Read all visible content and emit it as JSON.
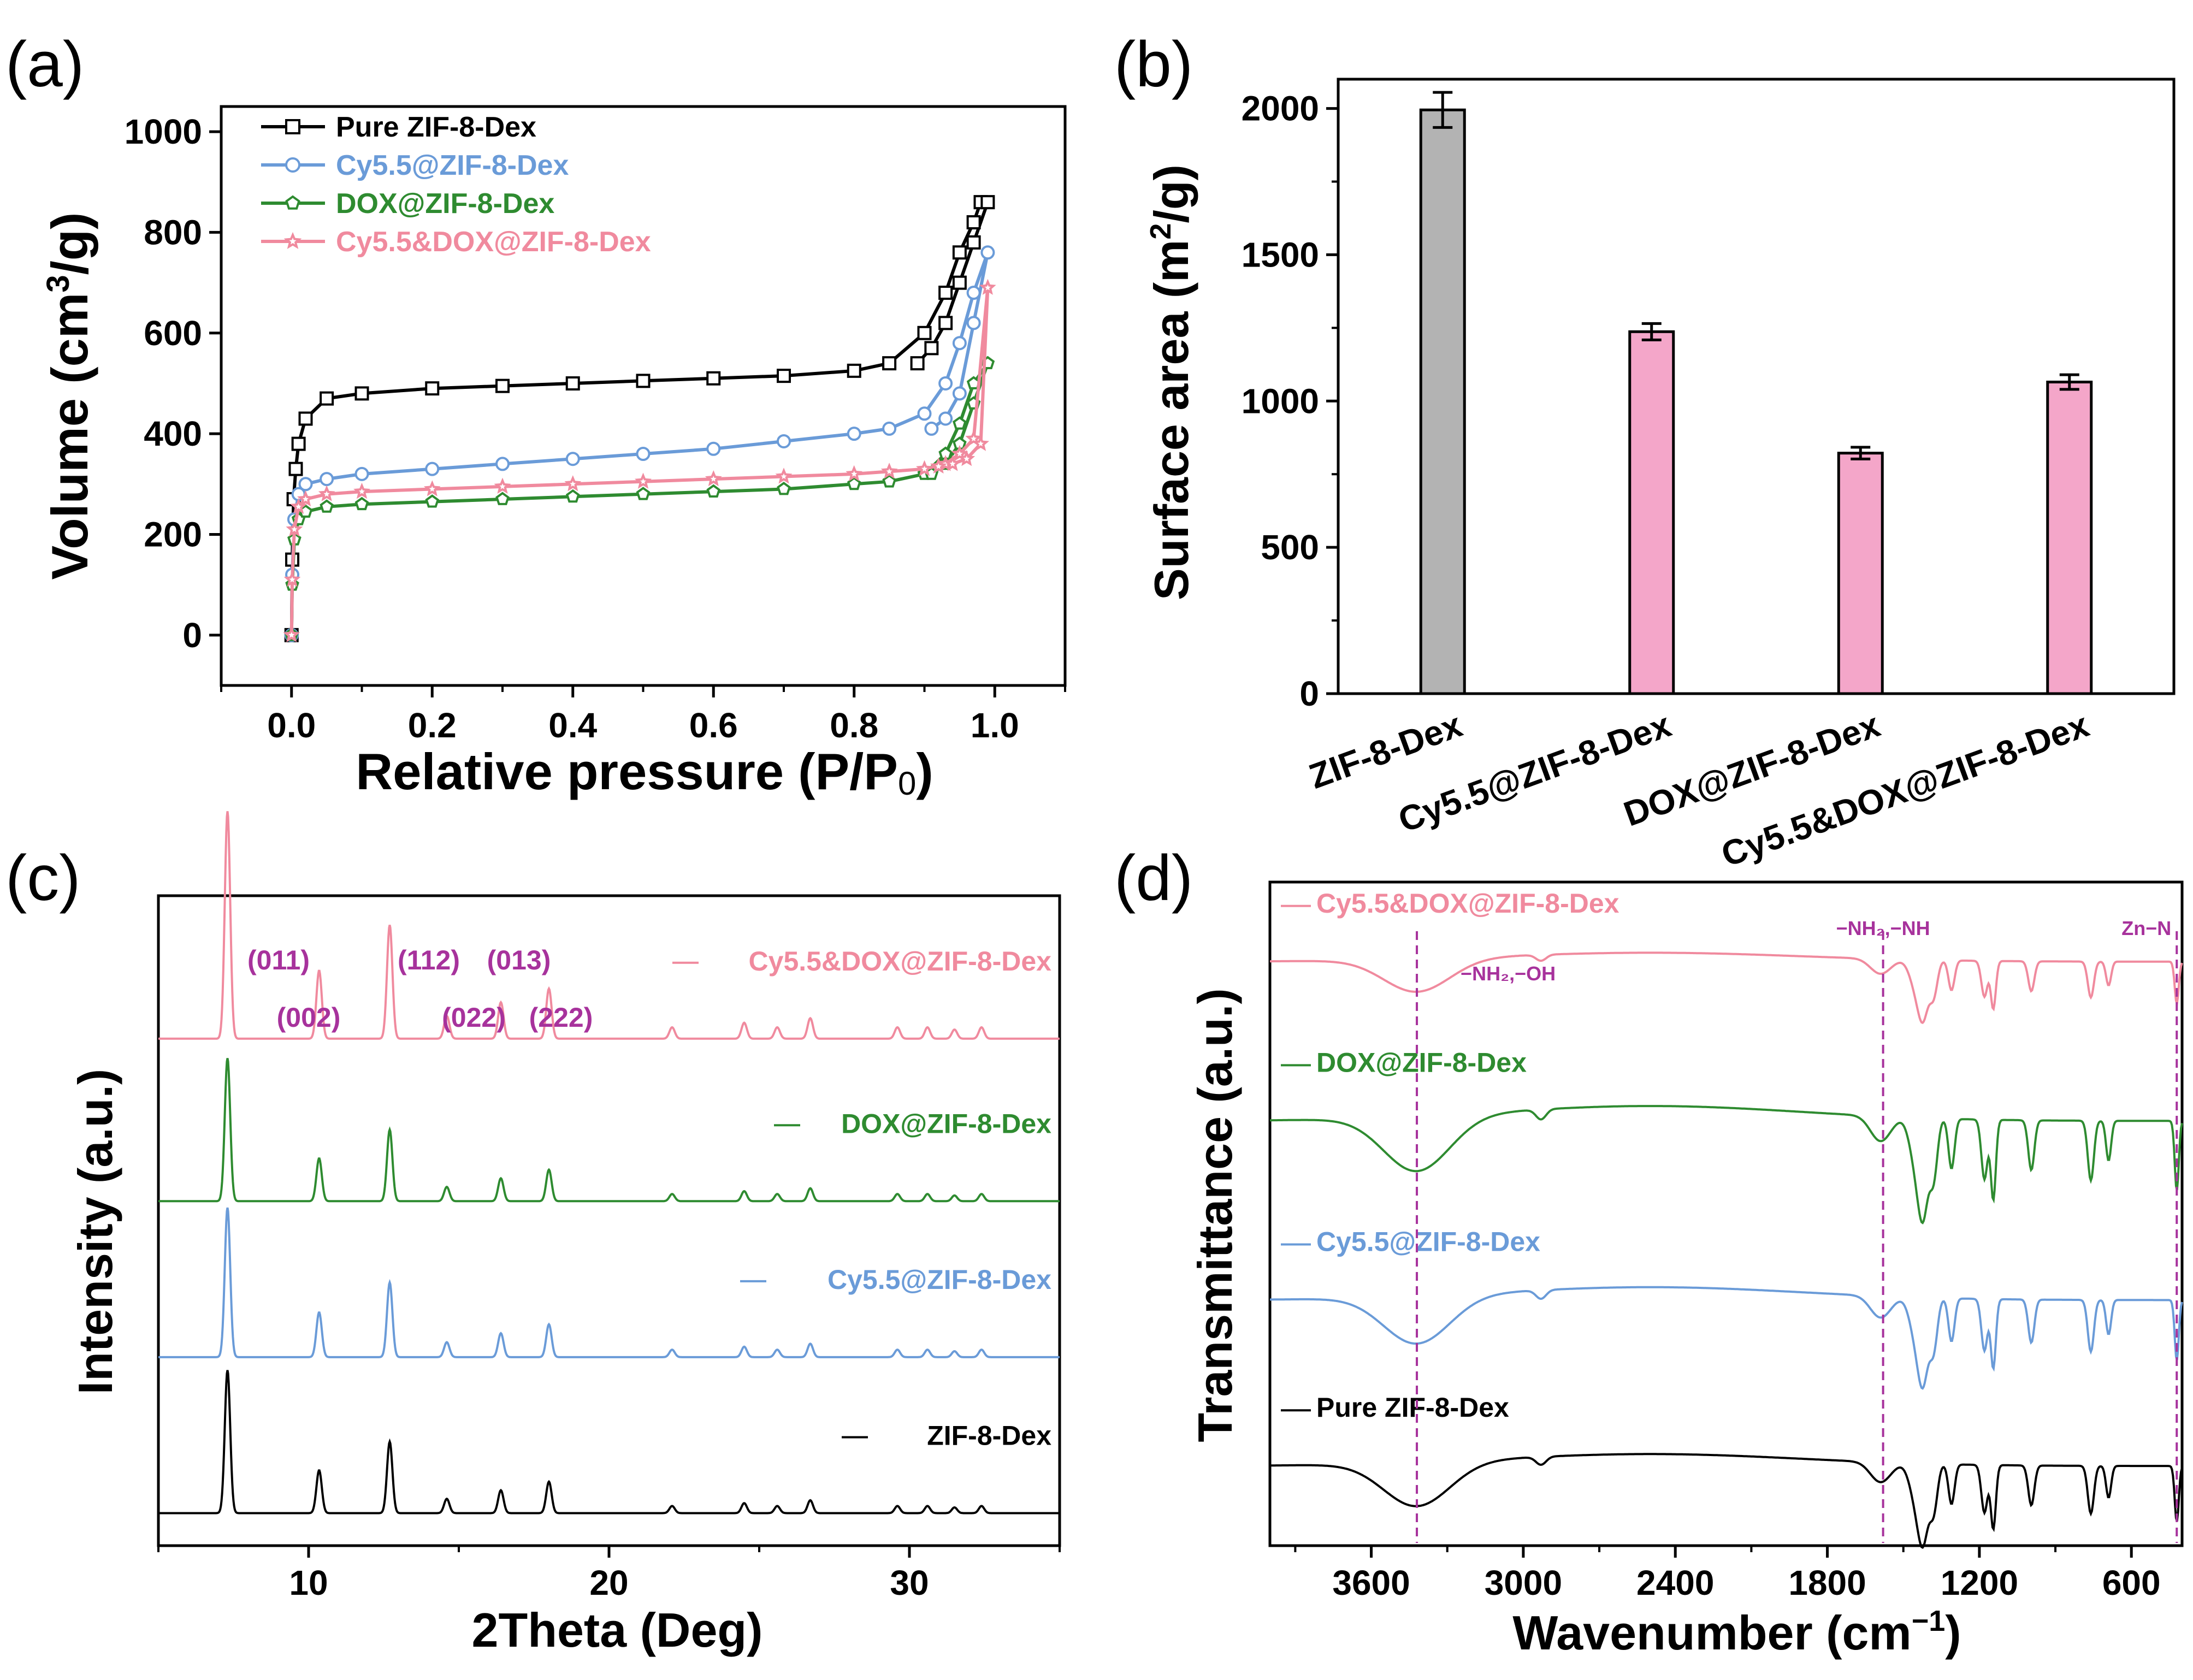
{
  "figure": {
    "panels": [
      "(a)",
      "(b)",
      "(c)",
      "(d)"
    ]
  },
  "chart_data": [
    {
      "panel": "(a)",
      "type": "line",
      "title": "",
      "xlabel_parts": [
        "Relative pressure (P/P",
        "0",
        ")"
      ],
      "ylabel_parts": [
        "Volume (cm",
        "3",
        "/g)"
      ],
      "xlim": [
        -0.1,
        1.1
      ],
      "ylim": [
        -100,
        1050
      ],
      "xticks": [
        0.0,
        0.2,
        0.4,
        0.6,
        0.8,
        1.0
      ],
      "xtick_labels": [
        "0.0",
        "0.2",
        "0.4",
        "0.6",
        "0.8",
        "1.0"
      ],
      "yticks": [
        0,
        200,
        400,
        600,
        800,
        1000
      ],
      "ytick_labels": [
        "0",
        "200",
        "400",
        "600",
        "800",
        "1000"
      ],
      "legend_position": "top-left",
      "series": [
        {
          "name": "Pure ZIF-8-Dex",
          "color": "#000000",
          "marker": "square",
          "x": [
            0.0,
            0.001,
            0.003,
            0.006,
            0.01,
            0.02,
            0.05,
            0.1,
            0.2,
            0.3,
            0.4,
            0.5,
            0.6,
            0.7,
            0.8,
            0.85,
            0.9,
            0.93,
            0.95,
            0.97,
            0.98,
            0.99,
            0.97,
            0.95,
            0.93,
            0.91,
            0.89
          ],
          "y": [
            0,
            150,
            270,
            330,
            380,
            430,
            470,
            480,
            490,
            495,
            500,
            505,
            510,
            515,
            525,
            540,
            600,
            680,
            760,
            820,
            860,
            860,
            780,
            700,
            620,
            570,
            540
          ]
        },
        {
          "name": "Cy5.5@ZIF-8-Dex",
          "color": "#6a9bd8",
          "marker": "circle",
          "x": [
            0.0,
            0.001,
            0.004,
            0.01,
            0.02,
            0.05,
            0.1,
            0.2,
            0.3,
            0.4,
            0.5,
            0.6,
            0.7,
            0.8,
            0.85,
            0.9,
            0.93,
            0.95,
            0.97,
            0.99,
            0.97,
            0.95,
            0.93,
            0.91
          ],
          "y": [
            0,
            120,
            230,
            280,
            300,
            310,
            320,
            330,
            340,
            350,
            360,
            370,
            385,
            400,
            410,
            440,
            500,
            580,
            680,
            760,
            620,
            480,
            430,
            410
          ]
        },
        {
          "name": "DOX@ZIF-8-Dex",
          "color": "#2e8b30",
          "marker": "pentagon",
          "x": [
            0.0,
            0.001,
            0.004,
            0.01,
            0.02,
            0.05,
            0.1,
            0.2,
            0.3,
            0.4,
            0.5,
            0.6,
            0.7,
            0.8,
            0.85,
            0.9,
            0.93,
            0.95,
            0.97,
            0.99,
            0.97,
            0.95,
            0.93,
            0.91
          ],
          "y": [
            0,
            100,
            190,
            230,
            245,
            255,
            260,
            265,
            270,
            275,
            280,
            285,
            290,
            300,
            305,
            320,
            360,
            420,
            500,
            540,
            460,
            380,
            340,
            320
          ]
        },
        {
          "name": "Cy5.5&DOX@ZIF-8-Dex",
          "color": "#f08a9e",
          "marker": "star",
          "x": [
            0.0,
            0.001,
            0.004,
            0.01,
            0.02,
            0.05,
            0.1,
            0.2,
            0.3,
            0.4,
            0.5,
            0.6,
            0.7,
            0.8,
            0.85,
            0.9,
            0.93,
            0.95,
            0.97,
            0.99,
            0.98,
            0.96,
            0.94,
            0.92
          ],
          "y": [
            0,
            110,
            210,
            255,
            270,
            280,
            285,
            290,
            295,
            300,
            305,
            310,
            315,
            320,
            325,
            330,
            340,
            360,
            390,
            690,
            380,
            350,
            340,
            335
          ]
        }
      ]
    },
    {
      "panel": "(b)",
      "type": "bar",
      "title": "",
      "xlabel": "",
      "ylabel_parts": [
        "Surface area (m",
        "2",
        "/g)"
      ],
      "ylim": [
        0,
        2100
      ],
      "yticks": [
        0,
        500,
        1000,
        1500,
        2000
      ],
      "ytick_labels": [
        "0",
        "500",
        "1000",
        "1500",
        "2000"
      ],
      "categories": [
        "ZIF-8-Dex",
        "Cy5.5@ZIF-8-Dex",
        "DOX@ZIF-8-Dex",
        "Cy5.5&DOX@ZIF-8-Dex"
      ],
      "values": [
        1995,
        1237,
        822,
        1065
      ],
      "errors": [
        60,
        28,
        20,
        25
      ],
      "colors": [
        "#b3b3b3",
        "#f4a6c9",
        "#f4a6c9",
        "#f4a6c9"
      ]
    },
    {
      "panel": "(c)",
      "type": "line",
      "title": "",
      "xlabel": "2Theta (Deg)",
      "ylabel": "Intensity (a.u.)",
      "xlim": [
        5,
        35
      ],
      "xticks": [
        10,
        20,
        30
      ],
      "xtick_labels": [
        "10",
        "20",
        "30"
      ],
      "peaks_2theta": [
        7.3,
        10.35,
        12.7,
        14.6,
        16.4,
        18.0,
        22.1,
        24.5,
        25.6,
        26.7,
        29.6,
        30.6,
        31.5,
        32.4
      ],
      "peak_heights": [
        1.0,
        0.3,
        0.5,
        0.1,
        0.16,
        0.22,
        0.05,
        0.07,
        0.05,
        0.09,
        0.05,
        0.05,
        0.04,
        0.05
      ],
      "peak_labels": [
        {
          "text": "(011)",
          "row": 1,
          "near": 9.0
        },
        {
          "text": "(112)",
          "row": 1,
          "near": 14.0
        },
        {
          "text": "(013)",
          "row": 1,
          "near": 17.0
        },
        {
          "text": "(002)",
          "row": 2,
          "near": 10.0
        },
        {
          "text": "(022)",
          "row": 2,
          "near": 15.5
        },
        {
          "text": "(222)",
          "row": 2,
          "near": 18.4
        }
      ],
      "series": [
        {
          "name": "Cy5.5&DOX@ZIF-8-Dex",
          "color": "#f08a9e",
          "baseline": 0.78,
          "scale": 0.35
        },
        {
          "name": "DOX@ZIF-8-Dex",
          "color": "#2e8b30",
          "baseline": 0.53,
          "scale": 0.22
        },
        {
          "name": "Cy5.5@ZIF-8-Dex",
          "color": "#6a9bd8",
          "baseline": 0.29,
          "scale": 0.23
        },
        {
          "name": "ZIF-8-Dex",
          "color": "#000000",
          "baseline": 0.05,
          "scale": 0.22
        }
      ]
    },
    {
      "panel": "(d)",
      "type": "line",
      "title": "",
      "xlabel_parts": [
        "Wavenumber (cm",
        "−1",
        ")"
      ],
      "ylabel": "Transmittance (a.u.)",
      "xlim": [
        4000,
        400
      ],
      "xticks": [
        3600,
        3000,
        2400,
        1800,
        1200,
        600
      ],
      "xtick_labels": [
        "3600",
        "3000",
        "2400",
        "1800",
        "1200",
        "600"
      ],
      "annotations": [
        {
          "text": "−NH₂,−OH",
          "x": 3420
        },
        {
          "text": "−NH₂,−NH",
          "x": 1580
        },
        {
          "text": "Zn−N",
          "x": 421
        }
      ],
      "series": [
        {
          "name": "Cy5.5&DOX@ZIF-8-Dex",
          "color": "#f08a9e",
          "baseline": 0.88,
          "scale": 0.09
        },
        {
          "name": "DOX@ZIF-8-Dex",
          "color": "#2e8b30",
          "baseline": 0.64,
          "scale": 0.15
        },
        {
          "name": "Cy5.5@ZIF-8-Dex",
          "color": "#6a9bd8",
          "baseline": 0.37,
          "scale": 0.13
        },
        {
          "name": "Pure ZIF-8-Dex",
          "color": "#000000",
          "baseline": 0.12,
          "scale": 0.12
        }
      ],
      "bands": [
        {
          "x": 3420,
          "w": 130,
          "d": 0.55
        },
        {
          "x": 2930,
          "w": 20,
          "d": 0.1
        },
        {
          "x": 1590,
          "w": 40,
          "d": 0.25
        },
        {
          "x": 1450,
          "w": 25,
          "d": 0.45
        },
        {
          "x": 1420,
          "w": 20,
          "d": 0.8
        },
        {
          "x": 1380,
          "w": 15,
          "d": 0.55
        },
        {
          "x": 1310,
          "w": 12,
          "d": 0.5
        },
        {
          "x": 1180,
          "w": 12,
          "d": 0.6
        },
        {
          "x": 1145,
          "w": 10,
          "d": 0.8
        },
        {
          "x": 995,
          "w": 12,
          "d": 0.5
        },
        {
          "x": 760,
          "w": 12,
          "d": 0.6
        },
        {
          "x": 690,
          "w": 10,
          "d": 0.4
        },
        {
          "x": 421,
          "w": 8,
          "d": 0.7
        }
      ]
    }
  ]
}
